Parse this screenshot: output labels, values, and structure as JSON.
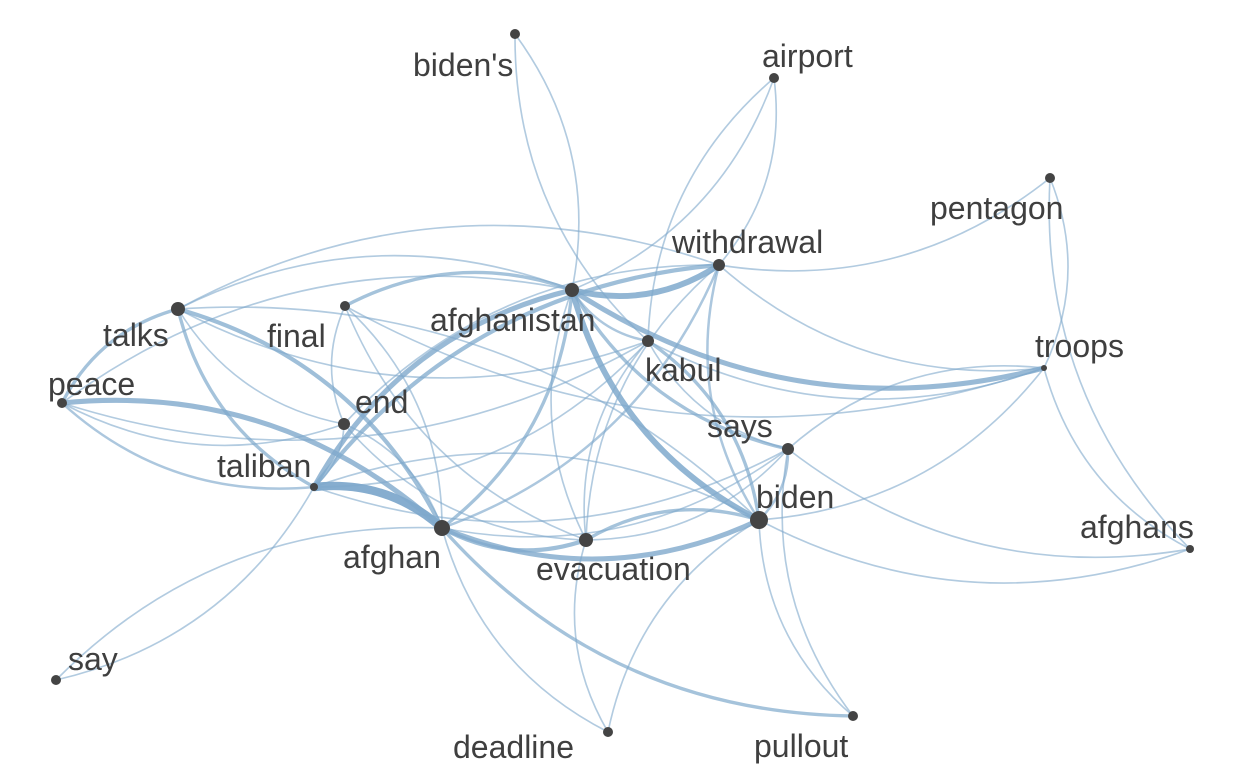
{
  "graph": {
    "style": {
      "edge_color": "#7fa9cc",
      "node_color": "#444444",
      "label_color": "#3f3f3f",
      "background": "#ffffff"
    },
    "nodes": [
      {
        "id": "biden's",
        "label": "biden's"
      },
      {
        "id": "airport",
        "label": "airport"
      },
      {
        "id": "pentagon",
        "label": "pentagon"
      },
      {
        "id": "withdrawal",
        "label": "withdrawal"
      },
      {
        "id": "afghanistan",
        "label": "afghanistan"
      },
      {
        "id": "troops",
        "label": "troops"
      },
      {
        "id": "talks",
        "label": "talks"
      },
      {
        "id": "final",
        "label": "final"
      },
      {
        "id": "kabul",
        "label": "kabul"
      },
      {
        "id": "peace",
        "label": "peace"
      },
      {
        "id": "end",
        "label": "end"
      },
      {
        "id": "says",
        "label": "says"
      },
      {
        "id": "taliban",
        "label": "taliban"
      },
      {
        "id": "biden",
        "label": "biden"
      },
      {
        "id": "afghans",
        "label": "afghans"
      },
      {
        "id": "afghan",
        "label": "afghan"
      },
      {
        "id": "evacuation",
        "label": "evacuation"
      },
      {
        "id": "say",
        "label": "say"
      },
      {
        "id": "deadline",
        "label": "deadline"
      },
      {
        "id": "pullout",
        "label": "pullout"
      }
    ],
    "edges": [
      {
        "source": "afghan",
        "target": "taliban",
        "weight": 9
      },
      {
        "source": "afghan",
        "target": "peace",
        "weight": 5
      },
      {
        "source": "afghan",
        "target": "talks",
        "weight": 4
      },
      {
        "source": "afghan",
        "target": "afghanistan",
        "weight": 3
      },
      {
        "source": "afghan",
        "target": "evacuation",
        "weight": 4
      },
      {
        "source": "afghan",
        "target": "biden",
        "weight": 5
      },
      {
        "source": "afghan",
        "target": "withdrawal",
        "weight": 2
      },
      {
        "source": "afghan",
        "target": "pullout",
        "weight": 3
      },
      {
        "source": "afghan",
        "target": "say",
        "weight": 1
      },
      {
        "source": "afghan",
        "target": "deadline",
        "weight": 1
      },
      {
        "source": "afghan",
        "target": "says",
        "weight": 1
      },
      {
        "source": "afghan",
        "target": "final",
        "weight": 1
      },
      {
        "source": "afghan",
        "target": "end",
        "weight": 1
      },
      {
        "source": "afghanistan",
        "target": "withdrawal",
        "weight": 6
      },
      {
        "source": "afghanistan",
        "target": "troops",
        "weight": 5
      },
      {
        "source": "afghanistan",
        "target": "biden",
        "weight": 6
      },
      {
        "source": "afghanistan",
        "target": "taliban",
        "weight": 5
      },
      {
        "source": "afghanistan",
        "target": "final",
        "weight": 3
      },
      {
        "source": "afghanistan",
        "target": "biden's",
        "weight": 1
      },
      {
        "source": "afghanistan",
        "target": "airport",
        "weight": 1
      },
      {
        "source": "afghanistan",
        "target": "says",
        "weight": 3
      },
      {
        "source": "afghanistan",
        "target": "kabul",
        "weight": 2
      },
      {
        "source": "afghanistan",
        "target": "evacuation",
        "weight": 1
      },
      {
        "source": "afghanistan",
        "target": "talks",
        "weight": 1
      },
      {
        "source": "afghanistan",
        "target": "peace",
        "weight": 1
      },
      {
        "source": "withdrawal",
        "target": "taliban",
        "weight": 4
      },
      {
        "source": "withdrawal",
        "target": "pentagon",
        "weight": 1
      },
      {
        "source": "withdrawal",
        "target": "biden",
        "weight": 2
      },
      {
        "source": "withdrawal",
        "target": "airport",
        "weight": 1
      },
      {
        "source": "withdrawal",
        "target": "end",
        "weight": 1
      },
      {
        "source": "withdrawal",
        "target": "troops",
        "weight": 1
      },
      {
        "source": "withdrawal",
        "target": "talks",
        "weight": 1
      },
      {
        "source": "withdrawal",
        "target": "evacuation",
        "weight": 1
      },
      {
        "source": "biden",
        "target": "kabul",
        "weight": 3
      },
      {
        "source": "biden",
        "target": "evacuation",
        "weight": 3
      },
      {
        "source": "biden",
        "target": "says",
        "weight": 2
      },
      {
        "source": "biden",
        "target": "troops",
        "weight": 1
      },
      {
        "source": "biden",
        "target": "deadline",
        "weight": 1
      },
      {
        "source": "biden",
        "target": "afghans",
        "weight": 1
      },
      {
        "source": "biden",
        "target": "pullout",
        "weight": 1
      },
      {
        "source": "biden",
        "target": "taliban",
        "weight": 1
      },
      {
        "source": "biden",
        "target": "talks",
        "weight": 1
      },
      {
        "source": "talks",
        "target": "taliban",
        "weight": 3
      },
      {
        "source": "talks",
        "target": "peace",
        "weight": 3
      },
      {
        "source": "talks",
        "target": "end",
        "weight": 1
      },
      {
        "source": "talks",
        "target": "kabul",
        "weight": 1
      },
      {
        "source": "peace",
        "target": "taliban",
        "weight": 2
      },
      {
        "source": "peace",
        "target": "kabul",
        "weight": 1
      },
      {
        "source": "peace",
        "target": "end",
        "weight": 1
      },
      {
        "source": "taliban",
        "target": "says",
        "weight": 1
      },
      {
        "source": "taliban",
        "target": "end",
        "weight": 1
      },
      {
        "source": "taliban",
        "target": "kabul",
        "weight": 1
      },
      {
        "source": "kabul",
        "target": "evacuation",
        "weight": 1
      },
      {
        "source": "kabul",
        "target": "says",
        "weight": 1
      },
      {
        "source": "kabul",
        "target": "troops",
        "weight": 1
      },
      {
        "source": "final",
        "target": "end",
        "weight": 1
      },
      {
        "source": "final",
        "target": "evacuation",
        "weight": 1
      },
      {
        "source": "final",
        "target": "troops",
        "weight": 1
      },
      {
        "source": "evacuation",
        "target": "deadline",
        "weight": 1
      },
      {
        "source": "evacuation",
        "target": "says",
        "weight": 1
      },
      {
        "source": "troops",
        "target": "pentagon",
        "weight": 1
      },
      {
        "source": "troops",
        "target": "afghans",
        "weight": 1
      },
      {
        "source": "troops",
        "target": "says",
        "weight": 1
      },
      {
        "source": "airport",
        "target": "kabul",
        "weight": 1
      },
      {
        "source": "biden's",
        "target": "kabul",
        "weight": 1
      },
      {
        "source": "pentagon",
        "target": "afghans",
        "weight": 1
      },
      {
        "source": "says",
        "target": "afghans",
        "weight": 1
      },
      {
        "source": "says",
        "target": "pullout",
        "weight": 1
      },
      {
        "source": "say",
        "target": "taliban",
        "weight": 1
      },
      {
        "source": "end",
        "target": "evacuation",
        "weight": 1
      }
    ]
  }
}
